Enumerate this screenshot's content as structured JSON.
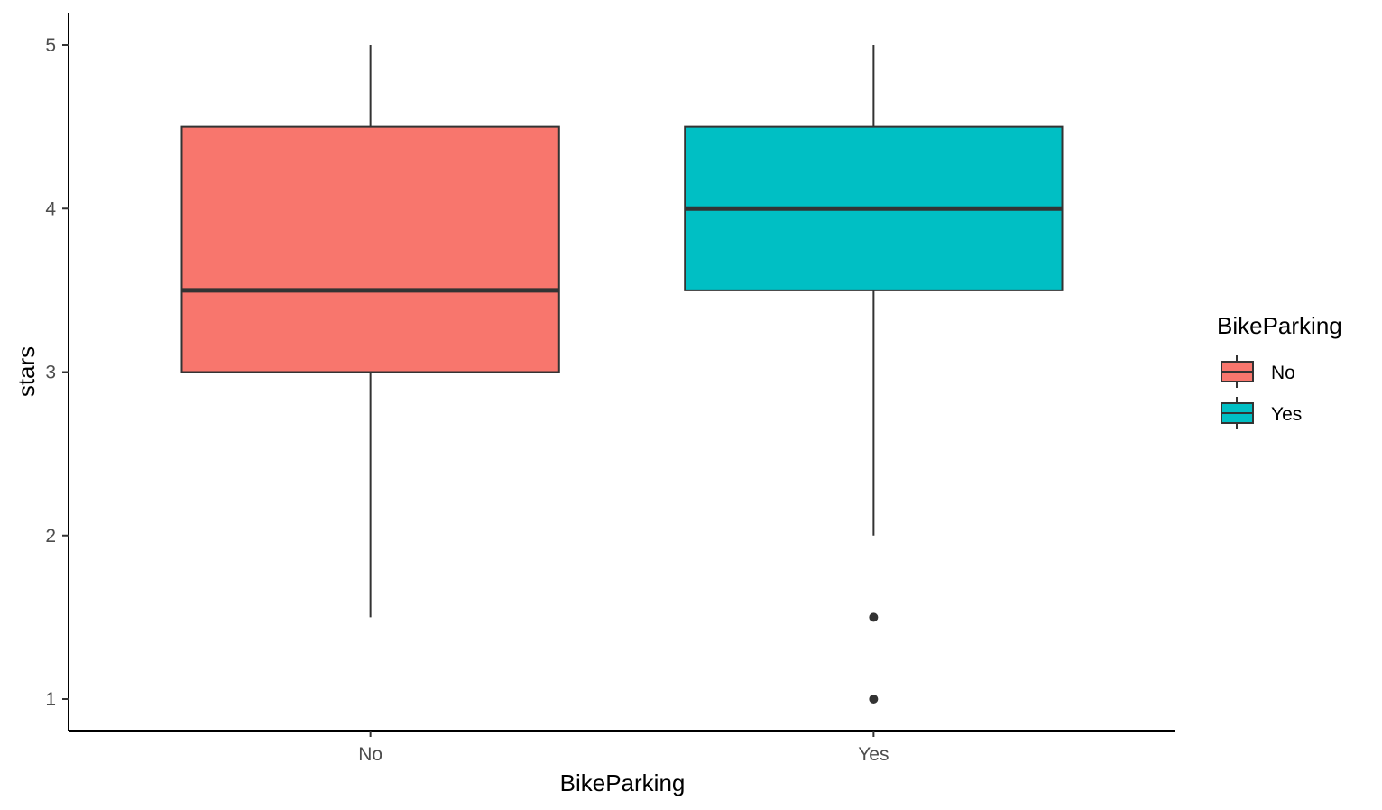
{
  "chart_data": {
    "type": "boxplot",
    "xlabel": "BikeParking",
    "ylabel": "stars",
    "categories": [
      "No",
      "Yes"
    ],
    "yticks": [
      1,
      2,
      3,
      4,
      5
    ],
    "ylim": [
      0.8,
      5.2
    ],
    "grid": false,
    "legend": {
      "title": "BikeParking",
      "position": "right",
      "entries": [
        {
          "label": "No",
          "color": "#F8766D"
        },
        {
          "label": "Yes",
          "color": "#00BFC4"
        }
      ]
    },
    "boxes": [
      {
        "category": "No",
        "min": 1.5,
        "q1": 3.0,
        "median": 3.5,
        "q3": 4.5,
        "max": 5.0,
        "outliers": [],
        "color": "#F8766D"
      },
      {
        "category": "Yes",
        "min": 2.0,
        "q1": 3.5,
        "median": 4.0,
        "q3": 4.5,
        "max": 5.0,
        "outliers": [
          1.5,
          1.0
        ],
        "color": "#00BFC4"
      }
    ]
  }
}
